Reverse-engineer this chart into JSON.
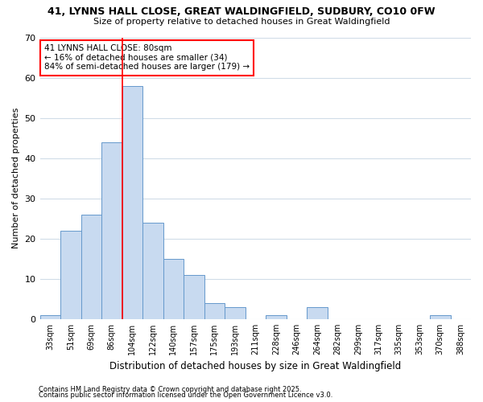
{
  "title1": "41, LYNNS HALL CLOSE, GREAT WALDINGFIELD, SUDBURY, CO10 0FW",
  "title2": "Size of property relative to detached houses in Great Waldingfield",
  "xlabel": "Distribution of detached houses by size in Great Waldingfield",
  "ylabel": "Number of detached properties",
  "bar_color": "#c8daf0",
  "bar_edge_color": "#6699cc",
  "bg_color": "#ffffff",
  "grid_color": "#d0dce8",
  "categories": [
    "33sqm",
    "51sqm",
    "69sqm",
    "86sqm",
    "104sqm",
    "122sqm",
    "140sqm",
    "157sqm",
    "175sqm",
    "193sqm",
    "211sqm",
    "228sqm",
    "246sqm",
    "264sqm",
    "282sqm",
    "299sqm",
    "317sqm",
    "335sqm",
    "353sqm",
    "370sqm",
    "388sqm"
  ],
  "values": [
    1,
    22,
    26,
    44,
    58,
    24,
    15,
    11,
    4,
    3,
    0,
    1,
    0,
    3,
    0,
    0,
    0,
    0,
    0,
    1,
    0
  ],
  "ylim": [
    0,
    70
  ],
  "yticks": [
    0,
    10,
    20,
    30,
    40,
    50,
    60,
    70
  ],
  "vline_x_index": 3,
  "annotation_text": "41 LYNNS HALL CLOSE: 80sqm\n← 16% of detached houses are smaller (34)\n84% of semi-detached houses are larger (179) →",
  "footer1": "Contains HM Land Registry data © Crown copyright and database right 2025.",
  "footer2": "Contains public sector information licensed under the Open Government Licence v3.0."
}
